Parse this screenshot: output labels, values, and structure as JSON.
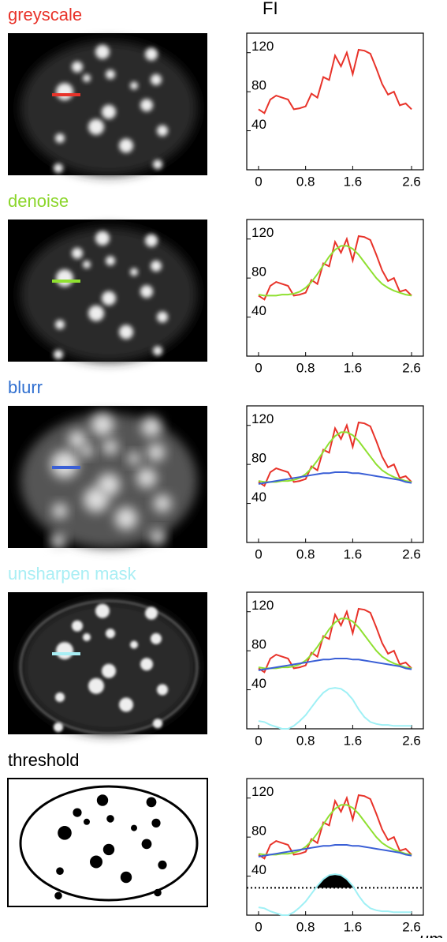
{
  "chart_data": [
    {
      "type": "line",
      "title": "greyscale",
      "title_color": "#e8332a",
      "ylabel": "FI",
      "x": [
        0,
        0.1,
        0.2,
        0.3,
        0.4,
        0.5,
        0.6,
        0.7,
        0.8,
        0.9,
        1.0,
        1.1,
        1.2,
        1.3,
        1.4,
        1.5,
        1.6,
        1.7,
        1.8,
        1.9,
        2.0,
        2.1,
        2.2,
        2.3,
        2.4,
        2.5,
        2.6
      ],
      "xlim": [
        -0.2,
        2.8
      ],
      "xticks": [
        0,
        0.8,
        1.6,
        2.6
      ],
      "ylim": [
        0,
        140
      ],
      "yticks": [
        40,
        80,
        120
      ],
      "series": [
        {
          "color": "#e8332a",
          "values": [
            62,
            58,
            72,
            76,
            74,
            72,
            62,
            63,
            65,
            78,
            74,
            95,
            92,
            117,
            106,
            120,
            98,
            123,
            122,
            119,
            104,
            88,
            77,
            80,
            66,
            68,
            62
          ]
        }
      ]
    },
    {
      "type": "line",
      "title": "denoise",
      "title_color": "#8bd62b",
      "x": [
        0,
        0.1,
        0.2,
        0.3,
        0.4,
        0.5,
        0.6,
        0.7,
        0.8,
        0.9,
        1.0,
        1.1,
        1.2,
        1.3,
        1.4,
        1.5,
        1.6,
        1.7,
        1.8,
        1.9,
        2.0,
        2.1,
        2.2,
        2.3,
        2.4,
        2.5,
        2.6
      ],
      "xlim": [
        -0.2,
        2.8
      ],
      "xticks": [
        0,
        0.8,
        1.6,
        2.6
      ],
      "ylim": [
        0,
        140
      ],
      "yticks": [
        40,
        80,
        120
      ],
      "series": [
        {
          "color": "#e8332a",
          "values": [
            62,
            58,
            72,
            76,
            74,
            72,
            62,
            63,
            65,
            78,
            74,
            95,
            92,
            117,
            106,
            120,
            98,
            123,
            122,
            119,
            104,
            88,
            77,
            80,
            66,
            68,
            62
          ]
        },
        {
          "color": "#8fe030",
          "values": [
            63,
            62,
            62,
            62,
            63,
            63,
            64,
            66,
            70,
            76,
            84,
            93,
            102,
            109,
            113,
            113,
            110,
            104,
            96,
            88,
            80,
            74,
            70,
            67,
            65,
            63,
            62
          ]
        }
      ]
    },
    {
      "type": "line",
      "title": "blurr",
      "title_color": "#2f6fd0",
      "x": [
        0,
        0.1,
        0.2,
        0.3,
        0.4,
        0.5,
        0.6,
        0.7,
        0.8,
        0.9,
        1.0,
        1.1,
        1.2,
        1.3,
        1.4,
        1.5,
        1.6,
        1.7,
        1.8,
        1.9,
        2.0,
        2.1,
        2.2,
        2.3,
        2.4,
        2.5,
        2.6
      ],
      "xlim": [
        -0.2,
        2.8
      ],
      "xticks": [
        0,
        0.8,
        1.6,
        2.6
      ],
      "ylim": [
        0,
        140
      ],
      "yticks": [
        40,
        80,
        120
      ],
      "series": [
        {
          "color": "#e8332a",
          "values": [
            62,
            58,
            72,
            76,
            74,
            72,
            62,
            63,
            65,
            78,
            74,
            95,
            92,
            117,
            106,
            120,
            98,
            123,
            122,
            119,
            104,
            88,
            77,
            80,
            66,
            68,
            62
          ]
        },
        {
          "color": "#8fe030",
          "values": [
            63,
            62,
            62,
            62,
            63,
            63,
            64,
            66,
            70,
            76,
            84,
            93,
            102,
            109,
            113,
            113,
            110,
            104,
            96,
            88,
            80,
            74,
            70,
            67,
            65,
            63,
            62
          ]
        },
        {
          "color": "#3a5fd6",
          "values": [
            60,
            61,
            62,
            63,
            64,
            65,
            66,
            67,
            68,
            69,
            70,
            71,
            71,
            72,
            72,
            72,
            71,
            71,
            70,
            69,
            68,
            67,
            66,
            65,
            64,
            62,
            61
          ]
        }
      ]
    },
    {
      "type": "line",
      "title": "unsharpen mask",
      "title_color": "#a8eef4",
      "x": [
        0,
        0.1,
        0.2,
        0.3,
        0.4,
        0.5,
        0.6,
        0.7,
        0.8,
        0.9,
        1.0,
        1.1,
        1.2,
        1.3,
        1.4,
        1.5,
        1.6,
        1.7,
        1.8,
        1.9,
        2.0,
        2.1,
        2.2,
        2.3,
        2.4,
        2.5,
        2.6
      ],
      "xlim": [
        -0.2,
        2.8
      ],
      "xticks": [
        0,
        0.8,
        1.6,
        2.6
      ],
      "ylim": [
        0,
        140
      ],
      "yticks": [
        40,
        80,
        120
      ],
      "series": [
        {
          "color": "#e8332a",
          "values": [
            62,
            58,
            72,
            76,
            74,
            72,
            62,
            63,
            65,
            78,
            74,
            95,
            92,
            117,
            106,
            120,
            98,
            123,
            122,
            119,
            104,
            88,
            77,
            80,
            66,
            68,
            62
          ]
        },
        {
          "color": "#8fe030",
          "values": [
            63,
            62,
            62,
            62,
            63,
            63,
            64,
            66,
            70,
            76,
            84,
            93,
            102,
            109,
            113,
            113,
            110,
            104,
            96,
            88,
            80,
            74,
            70,
            67,
            65,
            63,
            62
          ]
        },
        {
          "color": "#3a5fd6",
          "values": [
            60,
            61,
            62,
            63,
            64,
            65,
            66,
            67,
            68,
            69,
            70,
            71,
            71,
            72,
            72,
            72,
            71,
            71,
            70,
            69,
            68,
            67,
            66,
            65,
            64,
            62,
            61
          ]
        },
        {
          "color": "#9ff0f5",
          "values": [
            8,
            7,
            4,
            2,
            0,
            0,
            3,
            8,
            14,
            22,
            30,
            37,
            41,
            42,
            41,
            37,
            30,
            20,
            12,
            7,
            5,
            4,
            4,
            3,
            3,
            3,
            3
          ]
        }
      ]
    },
    {
      "type": "line",
      "title": "threshold",
      "title_color": "#000000",
      "xlabel": "μm",
      "x": [
        0,
        0.1,
        0.2,
        0.3,
        0.4,
        0.5,
        0.6,
        0.7,
        0.8,
        0.9,
        1.0,
        1.1,
        1.2,
        1.3,
        1.4,
        1.5,
        1.6,
        1.7,
        1.8,
        1.9,
        2.0,
        2.1,
        2.2,
        2.3,
        2.4,
        2.5,
        2.6
      ],
      "xlim": [
        -0.2,
        2.8
      ],
      "xticks": [
        0,
        0.8,
        1.6,
        2.6
      ],
      "ylim": [
        0,
        140
      ],
      "yticks": [
        40,
        80,
        120
      ],
      "threshold": 28,
      "series": [
        {
          "color": "#e8332a",
          "values": [
            62,
            58,
            72,
            76,
            74,
            72,
            62,
            63,
            65,
            78,
            74,
            95,
            92,
            117,
            106,
            120,
            98,
            123,
            122,
            119,
            104,
            88,
            77,
            80,
            66,
            68,
            62
          ]
        },
        {
          "color": "#8fe030",
          "values": [
            63,
            62,
            62,
            62,
            63,
            63,
            64,
            66,
            70,
            76,
            84,
            93,
            102,
            109,
            113,
            113,
            110,
            104,
            96,
            88,
            80,
            74,
            70,
            67,
            65,
            63,
            62
          ]
        },
        {
          "color": "#3a5fd6",
          "values": [
            60,
            61,
            62,
            63,
            64,
            65,
            66,
            67,
            68,
            69,
            70,
            71,
            71,
            72,
            72,
            72,
            71,
            71,
            70,
            69,
            68,
            67,
            66,
            65,
            64,
            62,
            61
          ]
        },
        {
          "color": "#9ff0f5",
          "values": [
            8,
            7,
            4,
            2,
            0,
            0,
            3,
            8,
            14,
            22,
            30,
            37,
            41,
            42,
            41,
            37,
            30,
            20,
            12,
            7,
            5,
            4,
            4,
            3,
            3,
            3,
            3
          ]
        }
      ]
    }
  ]
}
